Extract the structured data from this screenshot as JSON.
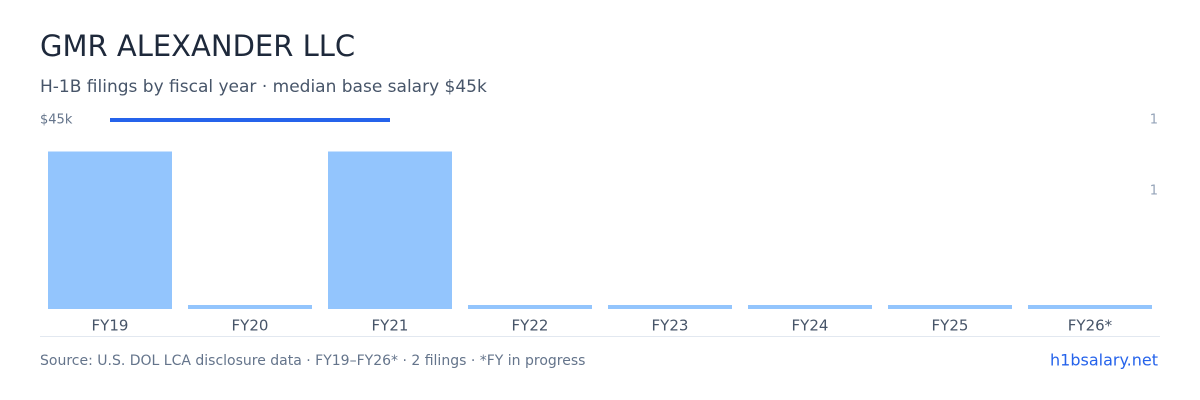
{
  "chart_data": {
    "type": "bar",
    "title": "GMR ALEXANDER LLC",
    "subtitle": "H-1B filings by fiscal year · median base salary $45k",
    "categories": [
      "FY19",
      "FY20",
      "FY21",
      "FY22",
      "FY23",
      "FY24",
      "FY25",
      "FY26*"
    ],
    "series": [
      {
        "name": "H-1B filings",
        "color": "#93c5fd",
        "values": [
          1,
          0,
          1,
          0,
          0,
          0,
          0,
          0
        ]
      },
      {
        "name": "median base salary",
        "color": "#2563eb",
        "axis": "y2",
        "values": [
          45000,
          45000,
          45000,
          null,
          null,
          null,
          null,
          null
        ]
      }
    ],
    "ylim": [
      0,
      1.2
    ],
    "yticks": [
      {
        "value": 0.75,
        "label": "1"
      },
      {
        "value": 1.2,
        "label": "1"
      }
    ],
    "y2lim": [
      0,
      45000
    ],
    "y2ticks": [
      {
        "value": 45000,
        "label": "$45k"
      }
    ],
    "source": "Source: U.S. DOL LCA disclosure data · FY19–FY26* · 2 filings · *FY in progress",
    "site": "h1bsalary.net"
  }
}
